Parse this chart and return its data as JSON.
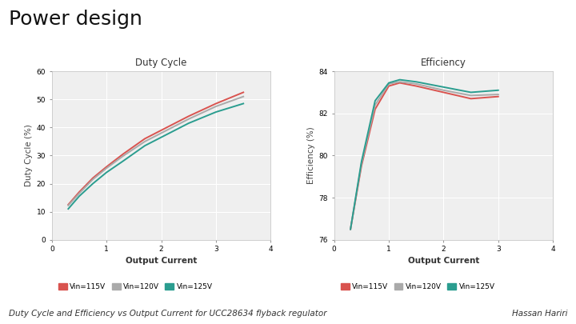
{
  "title": "Power design",
  "subtitle_left": "Duty Cycle and Efficiency vs Output Current for UCC28634 flyback regulator",
  "subtitle_right": "Hassan Hariri",
  "plot1_title": "Duty Cycle",
  "plot2_title": "Efficiency",
  "xlabel": "Output Current",
  "ylabel1": "Duty Cycle (%)",
  "ylabel2": "Efficiency (%)",
  "colors": [
    "#d9534f",
    "#aaaaaa",
    "#2a9d8f"
  ],
  "legend_labels_left": [
    "Vin=115V",
    "Vin=120V",
    "Vin=125V"
  ],
  "legend_labels_right": [
    "Vin=115V",
    "Vin=120V",
    "Vin=125V"
  ],
  "dc_x": [
    0.3,
    0.5,
    0.75,
    1.0,
    1.3,
    1.7,
    2.0,
    2.5,
    3.0,
    3.5
  ],
  "dc_115": [
    12.5,
    17.0,
    22.0,
    26.0,
    30.5,
    36.0,
    39.0,
    44.0,
    48.5,
    52.5
  ],
  "dc_120": [
    12.2,
    16.5,
    21.5,
    25.5,
    29.8,
    35.0,
    38.0,
    43.0,
    47.5,
    51.0
  ],
  "dc_125": [
    11.0,
    15.5,
    20.0,
    24.0,
    28.0,
    33.5,
    36.5,
    41.5,
    45.5,
    48.5
  ],
  "eff_x": [
    0.3,
    0.5,
    0.75,
    1.0,
    1.2,
    1.5,
    2.0,
    2.5,
    3.0
  ],
  "eff_115": [
    76.5,
    79.5,
    82.2,
    83.3,
    83.45,
    83.3,
    83.0,
    82.7,
    82.8
  ],
  "eff_120": [
    76.5,
    79.6,
    82.4,
    83.4,
    83.5,
    83.4,
    83.1,
    82.85,
    82.9
  ],
  "eff_125": [
    76.5,
    79.7,
    82.6,
    83.45,
    83.6,
    83.5,
    83.25,
    83.0,
    83.1
  ],
  "dc_ylim": [
    0,
    60
  ],
  "dc_yticks": [
    0,
    10,
    20,
    30,
    40,
    50,
    60
  ],
  "dc_xlim": [
    0,
    4
  ],
  "dc_xticks": [
    0,
    1,
    2,
    3,
    4
  ],
  "eff_ylim": [
    76,
    84
  ],
  "eff_yticks": [
    76,
    78,
    80,
    82,
    84
  ],
  "eff_xlim": [
    0,
    4
  ],
  "eff_xticks": [
    0,
    1,
    2,
    3,
    4
  ],
  "bg_color": "#ffffff",
  "plot_bg": "#efefef",
  "grid_color": "#ffffff",
  "linewidth": 1.4
}
